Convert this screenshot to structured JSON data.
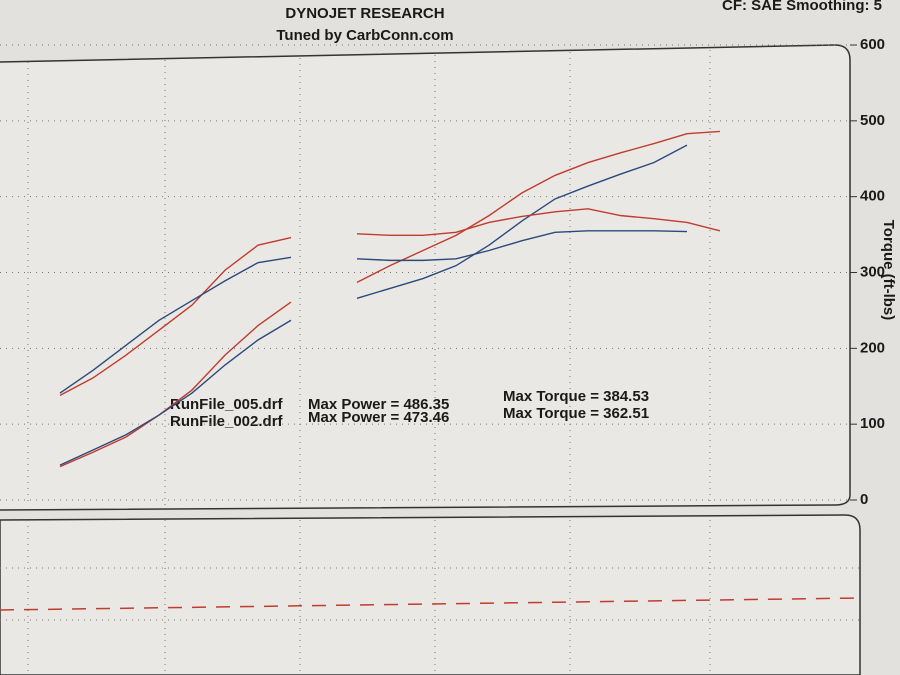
{
  "chart_data": {
    "type": "line",
    "title": "DYNOJET RESEARCH",
    "subtitle": "Tuned by CarbConn.com",
    "header_note": "CF: SAE  Smoothing: 5",
    "y_label": "Torque (ft-lbs)",
    "ylim": [
      0,
      600
    ],
    "yticks": [
      0,
      100,
      200,
      300,
      400,
      500,
      600
    ],
    "grid": true,
    "categories": [
      null,
      null,
      null,
      null,
      null,
      null,
      null,
      null,
      null,
      null,
      null,
      null,
      null,
      null,
      null,
      null,
      null,
      null,
      null,
      null,
      null
    ],
    "series": [
      {
        "color": "#c23b2e",
        "values": [
          44,
          63,
          83,
          112,
          145,
          191,
          230,
          261,
          null,
          287,
          309,
          329,
          349,
          375,
          405,
          428,
          445,
          458,
          470,
          483,
          486
        ]
      },
      {
        "color": "#2b4a7c",
        "values": [
          46,
          66,
          86,
          112,
          141,
          178,
          211,
          237,
          null,
          266,
          279,
          292,
          309,
          336,
          368,
          397,
          414,
          430,
          445,
          468,
          null
        ]
      },
      {
        "color": "#c23b2e",
        "values": [
          138,
          161,
          191,
          224,
          257,
          303,
          336,
          346,
          null,
          351,
          349,
          349,
          353,
          366,
          374,
          380,
          384,
          375,
          371,
          366,
          355
        ]
      },
      {
        "color": "#2b4a7c",
        "values": [
          141,
          171,
          204,
          237,
          263,
          289,
          313,
          320,
          null,
          318,
          316,
          316,
          318,
          329,
          342,
          353,
          355,
          355,
          355,
          354,
          null
        ]
      }
    ],
    "annotations": [
      {
        "file": "RunFile_005.drf",
        "power": "Max Power = 486.35",
        "torque": "Max Torque = 384.53"
      },
      {
        "file": "RunFile_002.drf",
        "power": "Max Power = 473.46",
        "torque": "Max Torque = 362.51"
      }
    ]
  }
}
